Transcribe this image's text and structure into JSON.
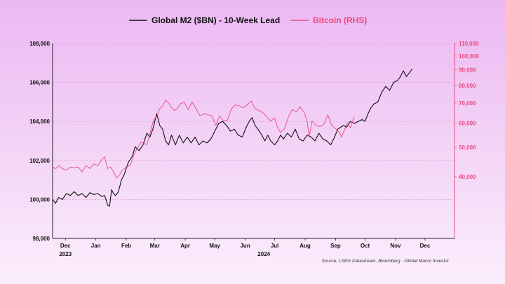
{
  "colors": {
    "m2": "#111111",
    "btc": "#e84b7f",
    "grid": "#d79ad8",
    "axis": "#222222"
  },
  "chart_data": {
    "type": "line",
    "legend": {
      "placement": "top-center"
    },
    "grid": true,
    "x_axis": {
      "range": [
        "2023-11-18",
        "2024-12-31"
      ],
      "ticks": [
        {
          "date": "2023-12-01",
          "label": "Dec"
        },
        {
          "date": "2024-01-01",
          "label": "Jan"
        },
        {
          "date": "2024-02-01",
          "label": "Feb"
        },
        {
          "date": "2024-03-01",
          "label": "Mar"
        },
        {
          "date": "2024-04-01",
          "label": "Apr"
        },
        {
          "date": "2024-05-01",
          "label": "May"
        },
        {
          "date": "2024-06-01",
          "label": "Jun"
        },
        {
          "date": "2024-07-01",
          "label": "Jul"
        },
        {
          "date": "2024-08-01",
          "label": "Aug"
        },
        {
          "date": "2024-09-01",
          "label": "Sep"
        },
        {
          "date": "2024-10-01",
          "label": "Oct"
        },
        {
          "date": "2024-11-01",
          "label": "Nov"
        },
        {
          "date": "2024-12-01",
          "label": "Dec"
        }
      ],
      "year_labels": [
        {
          "date": "2023-12-01",
          "label": "2023"
        },
        {
          "date": "2024-06-20",
          "label": "2024"
        }
      ]
    },
    "y_left": {
      "range": [
        98000,
        108000
      ],
      "ticks": [
        "98,000",
        "100,000",
        "102,000",
        "104,000",
        "106,000",
        "108,000"
      ],
      "tick_values": [
        98000,
        100000,
        102000,
        104000,
        106000,
        108000
      ]
    },
    "y_right": {
      "scale": "log",
      "range": [
        25000,
        110000
      ],
      "ticks": [
        "40,000",
        "50,000",
        "60,000",
        "70,000",
        "80,000",
        "90,000",
        "100,000",
        "110,000"
      ],
      "tick_values": [
        40000,
        50000,
        60000,
        70000,
        80000,
        90000,
        100000,
        110000
      ]
    },
    "series": [
      {
        "name": "Global M2 ($BN) - 10-Week Lead",
        "axis": "left",
        "points": [
          [
            "2023-11-18",
            100000
          ],
          [
            "2023-11-21",
            99800
          ],
          [
            "2023-11-24",
            100100
          ],
          [
            "2023-11-28",
            100000
          ],
          [
            "2023-12-02",
            100300
          ],
          [
            "2023-12-06",
            100200
          ],
          [
            "2023-12-10",
            100400
          ],
          [
            "2023-12-14",
            100200
          ],
          [
            "2023-12-18",
            100300
          ],
          [
            "2023-12-22",
            100100
          ],
          [
            "2023-12-26",
            100350
          ],
          [
            "2023-12-30",
            100250
          ],
          [
            "2024-01-03",
            100300
          ],
          [
            "2024-01-07",
            100150
          ],
          [
            "2024-01-10",
            100200
          ],
          [
            "2024-01-13",
            99700
          ],
          [
            "2024-01-15",
            99650
          ],
          [
            "2024-01-17",
            100500
          ],
          [
            "2024-01-19",
            100300
          ],
          [
            "2024-01-21",
            100200
          ],
          [
            "2024-01-24",
            100400
          ],
          [
            "2024-01-27",
            101000
          ],
          [
            "2024-01-30",
            101300
          ],
          [
            "2024-02-03",
            101900
          ],
          [
            "2024-02-07",
            102200
          ],
          [
            "2024-02-10",
            102700
          ],
          [
            "2024-02-14",
            102500
          ],
          [
            "2024-02-18",
            102800
          ],
          [
            "2024-02-22",
            103400
          ],
          [
            "2024-02-25",
            103200
          ],
          [
            "2024-02-28",
            103600
          ],
          [
            "2024-03-03",
            104400
          ],
          [
            "2024-03-06",
            103800
          ],
          [
            "2024-03-09",
            103600
          ],
          [
            "2024-03-12",
            103000
          ],
          [
            "2024-03-15",
            102800
          ],
          [
            "2024-03-18",
            103300
          ],
          [
            "2024-03-22",
            102800
          ],
          [
            "2024-03-26",
            103300
          ],
          [
            "2024-03-30",
            102900
          ],
          [
            "2024-04-03",
            103200
          ],
          [
            "2024-04-07",
            102900
          ],
          [
            "2024-04-11",
            103200
          ],
          [
            "2024-04-15",
            102800
          ],
          [
            "2024-04-19",
            103000
          ],
          [
            "2024-04-23",
            102900
          ],
          [
            "2024-04-27",
            103100
          ],
          [
            "2024-05-01",
            103500
          ],
          [
            "2024-05-05",
            103900
          ],
          [
            "2024-05-09",
            104000
          ],
          [
            "2024-05-13",
            103800
          ],
          [
            "2024-05-17",
            103500
          ],
          [
            "2024-05-21",
            103600
          ],
          [
            "2024-05-25",
            103300
          ],
          [
            "2024-05-29",
            103200
          ],
          [
            "2024-06-02",
            103700
          ],
          [
            "2024-06-05",
            104000
          ],
          [
            "2024-06-08",
            104200
          ],
          [
            "2024-06-11",
            103800
          ],
          [
            "2024-06-14",
            103600
          ],
          [
            "2024-06-18",
            103300
          ],
          [
            "2024-06-21",
            103000
          ],
          [
            "2024-06-24",
            103300
          ],
          [
            "2024-06-27",
            103000
          ],
          [
            "2024-07-01",
            102800
          ],
          [
            "2024-07-04",
            103000
          ],
          [
            "2024-07-07",
            103300
          ],
          [
            "2024-07-10",
            103100
          ],
          [
            "2024-07-14",
            103400
          ],
          [
            "2024-07-18",
            103200
          ],
          [
            "2024-07-22",
            103600
          ],
          [
            "2024-07-26",
            103100
          ],
          [
            "2024-07-30",
            103000
          ],
          [
            "2024-08-03",
            103300
          ],
          [
            "2024-08-07",
            103200
          ],
          [
            "2024-08-11",
            103000
          ],
          [
            "2024-08-15",
            103400
          ],
          [
            "2024-08-19",
            103100
          ],
          [
            "2024-08-23",
            103000
          ],
          [
            "2024-08-27",
            102800
          ],
          [
            "2024-08-31",
            103200
          ],
          [
            "2024-09-03",
            103600
          ],
          [
            "2024-09-06",
            103700
          ],
          [
            "2024-09-09",
            103800
          ],
          [
            "2024-09-12",
            103700
          ],
          [
            "2024-09-16",
            104000
          ],
          [
            "2024-09-20",
            103900
          ],
          [
            "2024-09-24",
            104000
          ],
          [
            "2024-09-28",
            104100
          ],
          [
            "2024-10-01",
            104000
          ],
          [
            "2024-10-04",
            104400
          ],
          [
            "2024-10-07",
            104700
          ],
          [
            "2024-10-10",
            104900
          ],
          [
            "2024-10-14",
            105000
          ],
          [
            "2024-10-18",
            105500
          ],
          [
            "2024-10-22",
            105800
          ],
          [
            "2024-10-26",
            105600
          ],
          [
            "2024-10-30",
            106000
          ],
          [
            "2024-11-03",
            106100
          ],
          [
            "2024-11-06",
            106300
          ],
          [
            "2024-11-09",
            106600
          ],
          [
            "2024-11-12",
            106300
          ],
          [
            "2024-11-15",
            106500
          ],
          [
            "2024-11-18",
            106700
          ]
        ]
      },
      {
        "name": "Bitcoin (RHS)",
        "axis": "right",
        "points": [
          [
            "2023-11-18",
            43000
          ],
          [
            "2023-11-21",
            42500
          ],
          [
            "2023-11-24",
            43500
          ],
          [
            "2023-11-28",
            42500
          ],
          [
            "2023-12-02",
            42000
          ],
          [
            "2023-12-06",
            43000
          ],
          [
            "2023-12-10",
            42800
          ],
          [
            "2023-12-14",
            43000
          ],
          [
            "2023-12-18",
            41500
          ],
          [
            "2023-12-22",
            43500
          ],
          [
            "2023-12-26",
            42500
          ],
          [
            "2023-12-30",
            44000
          ],
          [
            "2024-01-03",
            43500
          ],
          [
            "2024-01-07",
            45500
          ],
          [
            "2024-01-10",
            46500
          ],
          [
            "2024-01-13",
            42500
          ],
          [
            "2024-01-16",
            43000
          ],
          [
            "2024-01-19",
            41500
          ],
          [
            "2024-01-22",
            39500
          ],
          [
            "2024-01-25",
            40500
          ],
          [
            "2024-01-28",
            42000
          ],
          [
            "2024-02-01",
            43000
          ],
          [
            "2024-02-05",
            43500
          ],
          [
            "2024-02-09",
            47500
          ],
          [
            "2024-02-13",
            50000
          ],
          [
            "2024-02-16",
            52000
          ],
          [
            "2024-02-19",
            51500
          ],
          [
            "2024-02-22",
            51000
          ],
          [
            "2024-02-26",
            57000
          ],
          [
            "2024-02-29",
            62000
          ],
          [
            "2024-03-03",
            63000
          ],
          [
            "2024-03-06",
            67000
          ],
          [
            "2024-03-09",
            68500
          ],
          [
            "2024-03-12",
            71500
          ],
          [
            "2024-03-15",
            70000
          ],
          [
            "2024-03-18",
            67500
          ],
          [
            "2024-03-21",
            66000
          ],
          [
            "2024-03-24",
            67000
          ],
          [
            "2024-03-27",
            69500
          ],
          [
            "2024-03-31",
            70500
          ],
          [
            "2024-04-04",
            66500
          ],
          [
            "2024-04-08",
            70500
          ],
          [
            "2024-04-12",
            67000
          ],
          [
            "2024-04-16",
            63500
          ],
          [
            "2024-04-20",
            64500
          ],
          [
            "2024-04-24",
            64000
          ],
          [
            "2024-04-28",
            63500
          ],
          [
            "2024-05-02",
            59000
          ],
          [
            "2024-05-06",
            63500
          ],
          [
            "2024-05-10",
            61000
          ],
          [
            "2024-05-14",
            61500
          ],
          [
            "2024-05-18",
            67000
          ],
          [
            "2024-05-22",
            69000
          ],
          [
            "2024-05-26",
            68500
          ],
          [
            "2024-05-30",
            67500
          ],
          [
            "2024-06-03",
            69000
          ],
          [
            "2024-06-07",
            71000
          ],
          [
            "2024-06-11",
            67000
          ],
          [
            "2024-06-15",
            66000
          ],
          [
            "2024-06-19",
            65000
          ],
          [
            "2024-06-23",
            63000
          ],
          [
            "2024-06-27",
            61000
          ],
          [
            "2024-07-01",
            62500
          ],
          [
            "2024-07-04",
            58000
          ],
          [
            "2024-07-07",
            56000
          ],
          [
            "2024-07-11",
            57500
          ],
          [
            "2024-07-15",
            63000
          ],
          [
            "2024-07-19",
            66500
          ],
          [
            "2024-07-23",
            65500
          ],
          [
            "2024-07-27",
            68000
          ],
          [
            "2024-07-31",
            65000
          ],
          [
            "2024-08-03",
            61000
          ],
          [
            "2024-08-05",
            54000
          ],
          [
            "2024-08-08",
            61000
          ],
          [
            "2024-08-12",
            59000
          ],
          [
            "2024-08-16",
            58500
          ],
          [
            "2024-08-20",
            59500
          ],
          [
            "2024-08-24",
            64000
          ],
          [
            "2024-08-28",
            59000
          ],
          [
            "2024-09-01",
            57500
          ],
          [
            "2024-09-05",
            56000
          ],
          [
            "2024-09-07",
            54000
          ],
          [
            "2024-09-10",
            57000
          ],
          [
            "2024-09-13",
            60000
          ],
          [
            "2024-09-16",
            58000
          ],
          [
            "2024-09-20",
            63000
          ]
        ]
      }
    ],
    "source": "Source: LSEG Datastream, Bloomberg - Global Macro Investor"
  }
}
